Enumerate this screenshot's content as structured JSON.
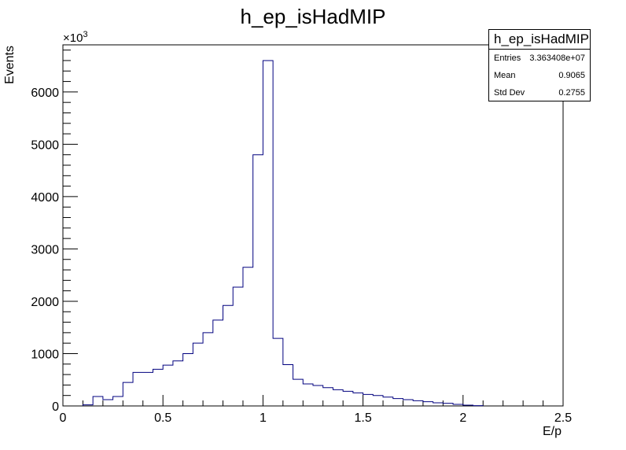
{
  "chart_data": {
    "type": "bar",
    "title": "h_ep_isHadMIP",
    "xlabel": "E/p",
    "ylabel": "Events",
    "y_multiplier_label": "×10",
    "y_multiplier_exponent": "3",
    "xlim": [
      0,
      2.5
    ],
    "ylim": [
      0,
      6900
    ],
    "x_ticks": [
      0,
      0.5,
      1,
      1.5,
      2,
      2.5
    ],
    "x_tick_labels": [
      "0",
      "0.5",
      "1",
      "1.5",
      "2",
      "2.5"
    ],
    "y_ticks": [
      0,
      1000,
      2000,
      3000,
      4000,
      5000,
      6000
    ],
    "y_tick_labels": [
      "0",
      "1000",
      "2000",
      "3000",
      "4000",
      "5000",
      "6000"
    ],
    "bin_width": 0.05,
    "bin_low_edges": [
      0.1,
      0.15,
      0.2,
      0.25,
      0.3,
      0.35,
      0.4,
      0.45,
      0.5,
      0.55,
      0.6,
      0.65,
      0.7,
      0.75,
      0.8,
      0.85,
      0.9,
      0.95,
      1.0,
      1.05,
      1.1,
      1.15,
      1.2,
      1.25,
      1.3,
      1.35,
      1.4,
      1.45,
      1.5,
      1.55,
      1.6,
      1.65,
      1.7,
      1.75,
      1.8,
      1.85,
      1.9,
      1.95,
      2.0,
      2.05
    ],
    "values": [
      20,
      180,
      120,
      180,
      450,
      640,
      640,
      700,
      780,
      860,
      1000,
      1200,
      1400,
      1640,
      1920,
      2270,
      2650,
      4800,
      6600,
      1290,
      790,
      510,
      420,
      390,
      350,
      310,
      280,
      250,
      220,
      200,
      170,
      140,
      120,
      100,
      80,
      60,
      50,
      30,
      15,
      5
    ],
    "line_color": "#00007f",
    "grid": false
  },
  "stats_box": {
    "title": "h_ep_isHadMIP",
    "rows": [
      {
        "label": "Entries",
        "value": "3.363408e+07"
      },
      {
        "label": "Mean",
        "value": "0.9065"
      },
      {
        "label": "Std Dev",
        "value": "0.2755"
      }
    ]
  }
}
